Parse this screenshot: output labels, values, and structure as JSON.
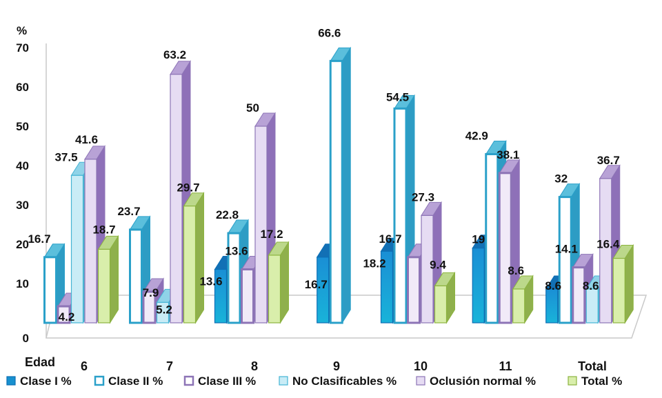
{
  "chart_data": {
    "type": "bar",
    "ylabel": "%",
    "xlabel": "Edad",
    "ylim": [
      0,
      70
    ],
    "yticks": [
      "0",
      "10",
      "20",
      "30",
      "40",
      "50",
      "60",
      "70"
    ],
    "categories": [
      "6",
      "7",
      "8",
      "9",
      "10",
      "11",
      "Total"
    ],
    "series": [
      {
        "name": "Clase I %",
        "values": [
          null,
          null,
          13.6,
          16.7,
          18.2,
          19,
          8.6
        ],
        "labels": [
          "",
          "",
          "13.6",
          "16.7",
          "18.2",
          "19",
          "8.6"
        ]
      },
      {
        "name": "Clase II %",
        "values": [
          16.7,
          23.7,
          22.8,
          66.6,
          54.5,
          42.9,
          32
        ],
        "labels": [
          "16.7",
          "23.7",
          "22.8",
          "66.6",
          "54.5",
          "42.9",
          "32"
        ]
      },
      {
        "name": "Clase III %",
        "values": [
          4.2,
          7.9,
          13.6,
          null,
          16.7,
          38.1,
          14.1
        ],
        "labels": [
          "4.2",
          "7.9",
          "13.6",
          "",
          "16.7",
          "38.1",
          "14.1"
        ]
      },
      {
        "name": "No Clasificables %",
        "values": [
          37.5,
          5.2,
          null,
          null,
          null,
          null,
          8.6
        ],
        "labels": [
          "37.5",
          "5.2",
          "",
          "",
          "",
          "",
          "8.6"
        ]
      },
      {
        "name": "Oclusión normal  %",
        "values": [
          41.6,
          63.2,
          50,
          null,
          27.3,
          null,
          36.7
        ],
        "labels": [
          "41.6",
          "63.2",
          "50",
          "",
          "27.3",
          "",
          "36.7"
        ]
      },
      {
        "name": "Total  %",
        "values": [
          18.7,
          29.7,
          17.2,
          null,
          9.4,
          8.6,
          16.4
        ],
        "labels": [
          "18.7",
          "29.7",
          "17.2",
          "",
          "9.4",
          "8.6",
          "16.4"
        ]
      }
    ],
    "colors": {
      "Clase I %": "#1f97d4",
      "Clase II %": "#35a9cc",
      "Clase III %": "#a58ac9",
      "No Clasificables %": "#5fc4dc",
      "Oclusión normal  %": "#a58ac9",
      "Total  %": "#a6c65a"
    }
  }
}
